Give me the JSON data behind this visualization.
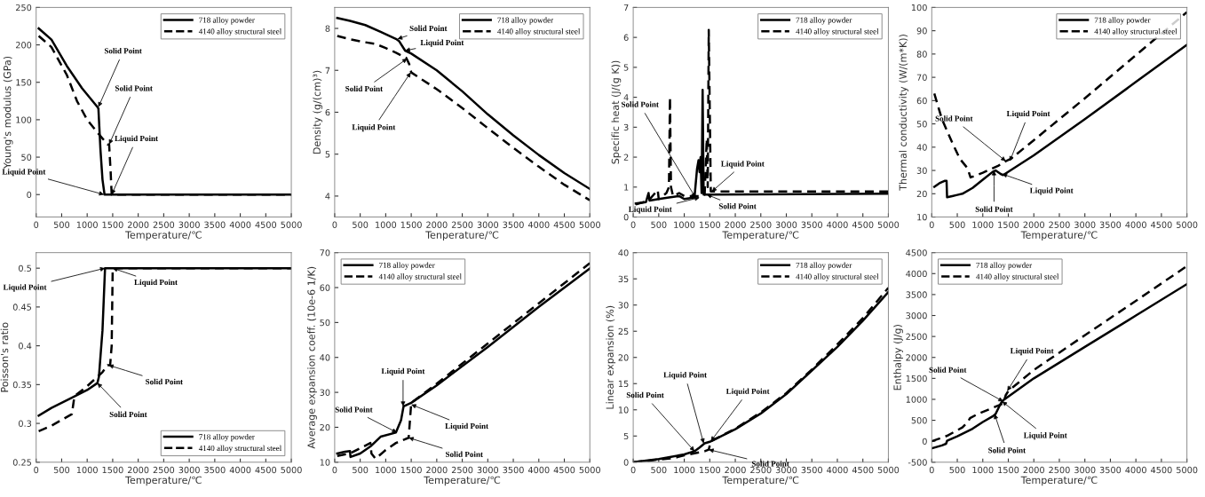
{
  "chart_data": [
    {
      "type": "line",
      "xlabel": "Temperature/℃",
      "ylabel": "Young's modulus (GPa)",
      "xlim": [
        0,
        5000
      ],
      "xticks": [
        0,
        500,
        1000,
        1500,
        2000,
        2500,
        3000,
        3500,
        4000,
        4500,
        5000
      ],
      "ylim": [
        -30,
        250
      ],
      "yticks": [
        0,
        50,
        100,
        150,
        200,
        250
      ],
      "legend": "top right",
      "grid": false,
      "series": [
        {
          "name": "718 alloy powder",
          "color": "#000000",
          "line_style": "solid",
          "x": [
            50,
            300,
            600,
            900,
            1200,
            1220,
            1260,
            1300,
            1340,
            5000
          ],
          "values": [
            222,
            207,
            172,
            142,
            117,
            115,
            60,
            20,
            0,
            0
          ]
        },
        {
          "name": "4140 alloy structural steel",
          "color": "#000000",
          "line_style": "dashed",
          "x": [
            50,
            300,
            600,
            800,
            1000,
            1200,
            1400,
            1430,
            1460,
            1480,
            5000
          ],
          "values": [
            212,
            197,
            160,
            125,
            100,
            83,
            67,
            67,
            30,
            0,
            0
          ]
        }
      ],
      "annotations": [
        {
          "text": "Solid Point",
          "x": 1220,
          "y": 117
        },
        {
          "text": "Solid Point",
          "x": 1430,
          "y": 67
        },
        {
          "text": "Liquid Point",
          "x": 1480,
          "y": 0
        },
        {
          "text": "Liquid Point",
          "x": 1330,
          "y": 0
        }
      ]
    },
    {
      "type": "line",
      "xlabel": "Tenperature/℃",
      "ylabel": "Density (g/(cm)³)",
      "xlim": [
        0,
        5000
      ],
      "xticks": [
        0,
        500,
        1000,
        1500,
        2000,
        2500,
        3000,
        3500,
        4000,
        4500,
        5000
      ],
      "ylim": [
        3.5,
        8.5
      ],
      "yticks": [
        4,
        5,
        6,
        7,
        8
      ],
      "legend": "top right",
      "grid": false,
      "series": [
        {
          "name": "718 alloy powder",
          "color": "#000000",
          "line_style": "solid",
          "x": [
            50,
            300,
            600,
            900,
            1200,
            1260,
            1380,
            1500,
            2000,
            2500,
            3000,
            3500,
            4000,
            4500,
            5000
          ],
          "values": [
            8.25,
            8.18,
            8.08,
            7.92,
            7.75,
            7.7,
            7.47,
            7.4,
            7.0,
            6.5,
            5.95,
            5.45,
            4.98,
            4.55,
            4.17
          ]
        },
        {
          "name": "4140 alloy structural steel",
          "color": "#000000",
          "line_style": "dashed",
          "x": [
            50,
            300,
            600,
            800,
            1000,
            1200,
            1400,
            1460,
            1500,
            2000,
            2500,
            3000,
            3500,
            4000,
            4500,
            5000
          ],
          "values": [
            7.82,
            7.74,
            7.67,
            7.63,
            7.53,
            7.42,
            7.3,
            7.15,
            6.95,
            6.55,
            6.1,
            5.62,
            5.15,
            4.7,
            4.27,
            3.9
          ]
        }
      ],
      "annotations": [
        {
          "text": "Solid Point",
          "x": 1230,
          "y": 7.75
        },
        {
          "text": "Liquid Point",
          "x": 1380,
          "y": 7.47
        },
        {
          "text": "Solid Point",
          "x": 1420,
          "y": 7.28
        },
        {
          "text": "Liquid Point",
          "x": 1490,
          "y": 6.95
        }
      ]
    },
    {
      "type": "line",
      "xlabel": "Temperature/℃",
      "ylabel": "Specific heat (J/(g K))",
      "xlim": [
        0,
        5000
      ],
      "xticks": [
        0,
        500,
        1000,
        1500,
        2000,
        2500,
        3000,
        3500,
        4000,
        4500,
        5000
      ],
      "ylim": [
        0,
        7
      ],
      "yticks": [
        0,
        1,
        2,
        3,
        4,
        5,
        6,
        7
      ],
      "legend": "top right",
      "grid": false,
      "series": [
        {
          "name": "718 alloy powder",
          "color": "#000000",
          "line_style": "solid",
          "x": [
            50,
            250,
            300,
            320,
            500,
            700,
            900,
            1000,
            1200,
            1250,
            1280,
            1300,
            1320,
            1340,
            1360,
            1380,
            1500,
            5000
          ],
          "values": [
            0.45,
            0.5,
            0.8,
            0.55,
            0.6,
            0.65,
            0.7,
            0.6,
            0.65,
            1.6,
            1.9,
            1.5,
            2.0,
            0.8,
            4.25,
            0.75,
            0.75,
            0.78
          ]
        },
        {
          "name": "4140 alloy structural steel",
          "color": "#000000",
          "line_style": "dashed",
          "x": [
            50,
            300,
            480,
            500,
            650,
            700,
            720,
            740,
            780,
            900,
            1000,
            1300,
            1400,
            1440,
            1460,
            1480,
            1520,
            5000
          ],
          "values": [
            0.42,
            0.55,
            0.9,
            0.6,
            0.8,
            1.0,
            4.0,
            1.0,
            0.7,
            0.8,
            0.7,
            0.7,
            0.75,
            2.6,
            1.0,
            6.25,
            0.85,
            0.85
          ]
        }
      ],
      "annotations": [
        {
          "text": "Solid Point",
          "x": 1220,
          "y": 0.65
        },
        {
          "text": "Liquid Point",
          "x": 1300,
          "y": 0.65
        },
        {
          "text": "Liquid Point",
          "x": 1540,
          "y": 0.85
        },
        {
          "text": "Solid Point",
          "x": 1440,
          "y": 0.75
        }
      ]
    },
    {
      "type": "line",
      "xlabel": "Temperature/℃",
      "ylabel": "Thermal conductivity (W/(m*K))",
      "xlim": [
        0,
        5000
      ],
      "xticks": [
        0,
        500,
        1000,
        1500,
        2000,
        2500,
        3000,
        3500,
        4000,
        4500,
        5000
      ],
      "ylim": [
        10,
        100
      ],
      "yticks": [
        10,
        20,
        30,
        40,
        50,
        60,
        70,
        80,
        90,
        100
      ],
      "legend": "top right",
      "grid": false,
      "series": [
        {
          "name": "718 alloy powder",
          "color": "#000000",
          "line_style": "solid",
          "x": [
            50,
            150,
            250,
            290,
            300,
            400,
            500,
            600,
            800,
            1000,
            1200,
            1250,
            1350,
            1400,
            2000,
            3000,
            4000,
            5000
          ],
          "values": [
            23,
            24.5,
            25.5,
            25.5,
            18.5,
            19,
            19.5,
            20,
            22.5,
            26,
            29.5,
            30,
            28.5,
            28,
            36.5,
            52,
            68,
            84
          ]
        },
        {
          "name": "4140 alloy structural steel",
          "color": "#000000",
          "line_style": "dashed",
          "x": [
            50,
            200,
            400,
            550,
            700,
            760,
            1000,
            1300,
            1450,
            1550,
            2000,
            3000,
            4000,
            5000
          ],
          "values": [
            63,
            52,
            42,
            35,
            31,
            27,
            29,
            32,
            34,
            35,
            43,
            61,
            79.5,
            98
          ]
        }
      ],
      "annotations": [
        {
          "text": "Solid Point",
          "x": 1450,
          "y": 34
        },
        {
          "text": "Liquid Point",
          "x": 1530,
          "y": 34
        },
        {
          "text": "Solid Point",
          "x": 1220,
          "y": 30
        },
        {
          "text": "Liquid Point",
          "x": 1380,
          "y": 28.5
        }
      ]
    },
    {
      "type": "line",
      "xlabel": "Temperature/℃",
      "ylabel": "Poisson's ratio",
      "xlim": [
        0,
        5000
      ],
      "xticks": [
        0,
        500,
        1000,
        1500,
        2000,
        2500,
        3000,
        3500,
        4000,
        4500,
        5000
      ],
      "ylim": [
        0.25,
        0.52
      ],
      "yticks": [
        0.25,
        0.3,
        0.35,
        0.4,
        0.45,
        0.5
      ],
      "legend": "bottom right",
      "grid": false,
      "series": [
        {
          "name": "718 alloy powder",
          "color": "#000000",
          "line_style": "solid",
          "x": [
            50,
            300,
            700,
            1000,
            1200,
            1230,
            1300,
            1350,
            5000
          ],
          "values": [
            0.31,
            0.32,
            0.333,
            0.343,
            0.352,
            0.36,
            0.42,
            0.5,
            0.5
          ]
        },
        {
          "name": "4140 alloy structural steel",
          "color": "#000000",
          "line_style": "dashed",
          "x": [
            50,
            300,
            700,
            750,
            1000,
            1300,
            1400,
            1450,
            1480,
            1500,
            5000
          ],
          "values": [
            0.29,
            0.297,
            0.312,
            0.335,
            0.348,
            0.366,
            0.375,
            0.375,
            0.4,
            0.5,
            0.5
          ]
        }
      ],
      "annotations": [
        {
          "text": "Liquid Point",
          "x": 1350,
          "y": 0.5
        },
        {
          "text": "Liquid Point",
          "x": 1500,
          "y": 0.5
        },
        {
          "text": "Solid Point",
          "x": 1420,
          "y": 0.375
        },
        {
          "text": "Solid Point",
          "x": 1200,
          "y": 0.352
        }
      ]
    },
    {
      "type": "line",
      "xlabel": "Temperature/℃",
      "ylabel": "Average expansion coeff. (10e-6 1/K)",
      "xlim": [
        0,
        5000
      ],
      "xticks": [
        0,
        500,
        1000,
        1500,
        2000,
        2500,
        3000,
        3500,
        4000,
        4500,
        5000
      ],
      "ylim": [
        10,
        70
      ],
      "yticks": [
        10,
        20,
        30,
        40,
        50,
        60,
        70
      ],
      "legend": "top left",
      "grid": false,
      "series": [
        {
          "name": "718 alloy powder",
          "color": "#000000",
          "line_style": "solid",
          "x": [
            50,
            200,
            300,
            310,
            500,
            700,
            900,
            1200,
            1300,
            1350,
            1500,
            2000,
            3000,
            4000,
            5000
          ],
          "values": [
            12.5,
            13,
            13.2,
            11.5,
            12.5,
            14.5,
            17.3,
            18.5,
            22,
            26,
            27,
            32,
            43,
            54.5,
            65.5
          ]
        },
        {
          "name": "4140 alloy structural steel",
          "color": "#000000",
          "line_style": "dashed",
          "x": [
            50,
            300,
            500,
            700,
            720,
            800,
            1000,
            1200,
            1450,
            1500,
            2000,
            3000,
            4000,
            5000
          ],
          "values": [
            11.8,
            12.5,
            14,
            15.5,
            12.5,
            11,
            13.5,
            15.5,
            17,
            27,
            32.5,
            44,
            55.5,
            67
          ]
        }
      ],
      "annotations": [
        {
          "text": "Liquid Point",
          "x": 1340,
          "y": 26
        },
        {
          "text": "Solid Point",
          "x": 1220,
          "y": 18.5
        },
        {
          "text": "Liquid Point",
          "x": 1500,
          "y": 26.5
        },
        {
          "text": "Solid Point",
          "x": 1450,
          "y": 17
        }
      ]
    },
    {
      "type": "line",
      "xlabel": "Temperature/℃",
      "ylabel": "Linear expansion (%)",
      "xlim": [
        0,
        5000
      ],
      "xticks": [
        0,
        500,
        1000,
        1500,
        2000,
        2500,
        3000,
        3500,
        4000,
        4500,
        5000
      ],
      "ylim": [
        0,
        40
      ],
      "yticks": [
        0,
        5,
        10,
        15,
        20,
        25,
        30,
        35,
        40
      ],
      "legend": "top right",
      "grid": false,
      "series": [
        {
          "name": "718 alloy powder",
          "color": "#000000",
          "line_style": "solid",
          "x": [
            0,
            500,
            1000,
            1200,
            1300,
            1400,
            1500,
            2000,
            2500,
            3000,
            3500,
            4000,
            4500,
            5000
          ],
          "values": [
            0,
            0.6,
            1.5,
            2.1,
            2.8,
            3.6,
            3.9,
            6.3,
            9.3,
            13,
            17.5,
            22,
            27,
            32.5
          ]
        },
        {
          "name": "4140 alloy structural steel",
          "color": "#000000",
          "line_style": "dashed",
          "x": [
            0,
            500,
            800,
            1000,
            1200,
            1400,
            1480,
            1520,
            2000,
            2500,
            3000,
            3500,
            4000,
            4500,
            5000
          ],
          "values": [
            0,
            0.5,
            0.8,
            1.3,
            1.7,
            2.1,
            2.4,
            4.0,
            6.4,
            9.5,
            13.2,
            17.7,
            22.5,
            27.5,
            33.3
          ]
        }
      ],
      "annotations": [
        {
          "text": "Solid Point",
          "x": 1200,
          "y": 2.1
        },
        {
          "text": "Liquid Point",
          "x": 1380,
          "y": 3.6
        },
        {
          "text": "Liquid Point",
          "x": 1520,
          "y": 4.0
        },
        {
          "text": "Solid Point",
          "x": 1480,
          "y": 2.4
        }
      ]
    },
    {
      "type": "line",
      "xlabel": "Temperature/℃",
      "ylabel": "Enthalpy (J/g)",
      "xlim": [
        0,
        5000
      ],
      "xticks": [
        0,
        500,
        1000,
        1500,
        2000,
        2500,
        3000,
        3500,
        4000,
        4500,
        5000
      ],
      "ylim": [
        -500,
        4500
      ],
      "yticks": [
        -500,
        0,
        500,
        1000,
        1500,
        2000,
        2500,
        3000,
        3500,
        4000,
        4500
      ],
      "legend": "top left",
      "grid": false,
      "series": [
        {
          "name": "718 alloy powder",
          "color": "#000000",
          "line_style": "solid",
          "x": [
            0,
            200,
            280,
            300,
            500,
            800,
            1000,
            1200,
            1250,
            1350,
            1400,
            2000,
            3000,
            4000,
            5000
          ],
          "values": [
            -170,
            -100,
            -60,
            10,
            120,
            300,
            460,
            600,
            650,
            900,
            980,
            1500,
            2250,
            3000,
            3750
          ]
        },
        {
          "name": "4140 alloy structural steel",
          "color": "#000000",
          "line_style": "dashed",
          "x": [
            0,
            300,
            600,
            700,
            750,
            900,
            1200,
            1400,
            1450,
            1500,
            2000,
            3000,
            4000,
            5000
          ],
          "values": [
            0,
            130,
            330,
            450,
            550,
            650,
            800,
            900,
            1100,
            1200,
            1700,
            2530,
            3350,
            4180
          ]
        }
      ],
      "annotations": [
        {
          "text": "Liquid Point",
          "x": 1480,
          "y": 1200
        },
        {
          "text": "Solid Point",
          "x": 1400,
          "y": 950
        },
        {
          "text": "Liquid Point",
          "x": 1380,
          "y": 950
        },
        {
          "text": "Solid Point",
          "x": 1230,
          "y": 650
        }
      ]
    }
  ]
}
